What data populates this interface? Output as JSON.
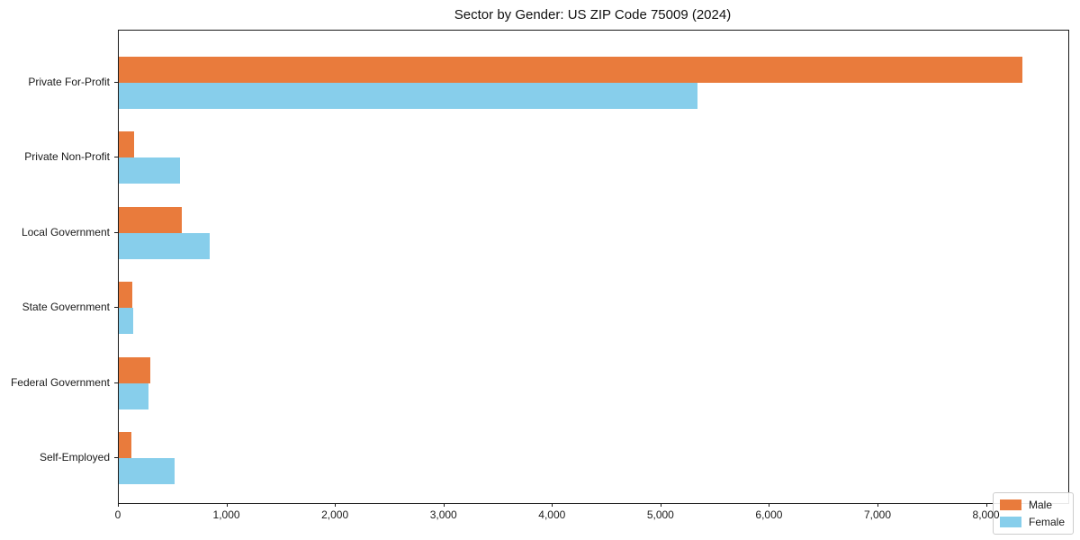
{
  "chart_data": {
    "type": "bar",
    "orientation": "horizontal",
    "title": "Sector by Gender: US ZIP Code 75009 (2024)",
    "categories": [
      "Private For-Profit",
      "Private Non-Profit",
      "Local Government",
      "State Government",
      "Federal Government",
      "Self-Employed"
    ],
    "series": [
      {
        "name": "Male",
        "color": "#E97B3C",
        "values": [
          8330,
          140,
          580,
          125,
          290,
          115
        ]
      },
      {
        "name": "Female",
        "color": "#87CEEB",
        "values": [
          5330,
          565,
          840,
          135,
          275,
          515
        ]
      }
    ],
    "xlabel": "",
    "ylabel": "",
    "xlim": [
      0,
      8750
    ],
    "xticks": [
      0,
      1000,
      2000,
      3000,
      4000,
      5000,
      6000,
      7000,
      8000
    ],
    "xtick_labels": [
      "0",
      "1,000",
      "2,000",
      "3,000",
      "4,000",
      "5,000",
      "6,000",
      "7,000",
      "8,000"
    ],
    "grid": false,
    "legend": {
      "position": "lower right",
      "entries": [
        "Male",
        "Female"
      ]
    }
  }
}
